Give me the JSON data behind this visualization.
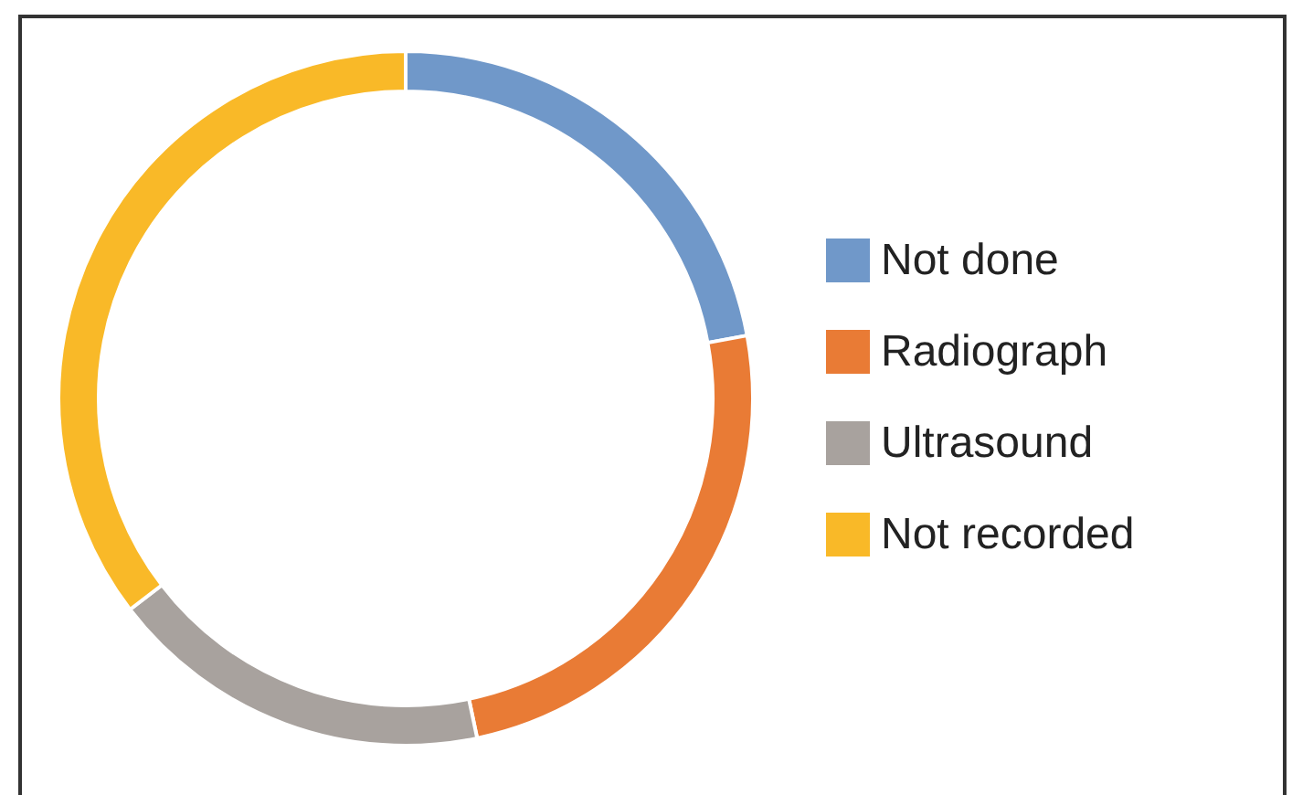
{
  "chart_data": {
    "type": "donut",
    "categories": [
      "Not done",
      "Radiograph",
      "Ultrasound",
      "Not recorded"
    ],
    "values": [
      22.1,
      24.6,
      17.9,
      35.4
    ],
    "colors": [
      "#7098c9",
      "#e97b35",
      "#a8a29e",
      "#f9b928"
    ],
    "legend": "right"
  }
}
